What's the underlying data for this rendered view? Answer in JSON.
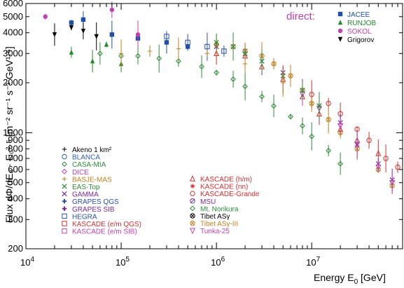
{
  "chart_data": {
    "type": "scatter",
    "title": "",
    "xlabel": "Energy E",
    "xlabel_sub": "0",
    "xlabel_unit": "[GeV]",
    "ylabel": "Flux dΦ/dE₀ · E₀²·⁵ [m⁻² sr⁻¹ s⁻¹ GeV¹·⁵]",
    "x_scale": "log",
    "y_scale": "log",
    "xlim": [
      10000,
      90000000
    ],
    "ylim": [
      200,
      6000
    ],
    "x_ticks": [
      {
        "value": 10000,
        "base": "10",
        "exp": "4"
      },
      {
        "value": 100000,
        "base": "10",
        "exp": "5"
      },
      {
        "value": 1000000,
        "base": "10",
        "exp": "6"
      },
      {
        "value": 10000000,
        "base": "10",
        "exp": "7"
      }
    ],
    "y_ticks": [
      "200",
      "300",
      "400",
      "500",
      "600",
      "700",
      "800",
      "900",
      "1000",
      "2000",
      "3000",
      "4000",
      "5000",
      "6000"
    ],
    "y_tick_values": [
      200,
      300,
      400,
      500,
      600,
      700,
      800,
      900,
      1000,
      2000,
      3000,
      4000,
      5000,
      6000
    ],
    "grid": false,
    "legend_direct": {
      "title": "direct:",
      "placement": "top-right",
      "entries": [
        {
          "name": "JACEE",
          "color": "#1f4fa8",
          "marker": "square"
        },
        {
          "name": "RUNJOB",
          "color": "#1f8a2a",
          "marker": "triangle-up"
        },
        {
          "name": "SOKOL",
          "color": "#c040b0",
          "marker": "circle"
        },
        {
          "name": "Grigorov",
          "color": "#000000",
          "marker": "triangle-down"
        }
      ]
    },
    "legend_left": {
      "placement": "bottom-left",
      "entries": [
        {
          "name": "Akeno 1 km²",
          "color": "#000000",
          "marker": "plus"
        },
        {
          "name": "BLANCA",
          "color": "#2a5fb5",
          "marker": "circle-open"
        },
        {
          "name": "CASA-MIA",
          "color": "#2e8b3a",
          "marker": "diamond-open"
        },
        {
          "name": "DICE",
          "color": "#c040b0",
          "marker": "diamond-open"
        },
        {
          "name": "BASJE-MAS",
          "color": "#c08020",
          "marker": "plus"
        },
        {
          "name": "EAS-Top",
          "color": "#2e8b3a",
          "marker": "cross"
        },
        {
          "name": "GAMMA",
          "color": "#7a2aa0",
          "marker": "cross"
        },
        {
          "name": "GRAPES QGS",
          "color": "#2a4fa8",
          "marker": "plus-bold"
        },
        {
          "name": "GRAPES SIB",
          "color": "#7a2aa0",
          "marker": "plus-bold"
        },
        {
          "name": "HEGRA",
          "color": "#2a4fa8",
          "marker": "square-open"
        },
        {
          "name": "KASCADE (e/m QGS)",
          "color": "#d03030",
          "marker": "square-open"
        },
        {
          "name": "KASCADE (e/m SIB)",
          "color": "#c040b0",
          "marker": "square-open"
        }
      ]
    },
    "legend_right": {
      "placement": "bottom-center",
      "entries": [
        {
          "name": "KASCADE (h/m)",
          "color": "#d03030",
          "marker": "triangle-open"
        },
        {
          "name": "KASCADE (nn)",
          "color": "#d03030",
          "marker": "star"
        },
        {
          "name": "KASCADE-Grande",
          "color": "#d03030",
          "marker": "circle-open"
        },
        {
          "name": "MSU",
          "color": "#7a2aa0",
          "marker": "circle-slash"
        },
        {
          "name": "Mt. Norikura",
          "color": "#2e8b3a",
          "marker": "diamond-open"
        },
        {
          "name": "Tibet ASγ",
          "color": "#000000",
          "marker": "circle-cross"
        },
        {
          "name": "Tibet ASγ-III",
          "color": "#c08020",
          "marker": "circle-cross"
        },
        {
          "name": "Tunka-25",
          "color": "#c040b0",
          "marker": "triangle-down-open"
        }
      ]
    },
    "series": [
      {
        "name": "JACEE",
        "color": "#1f4fa8",
        "marker": "square",
        "points": [
          [
            30000,
            4600
          ],
          [
            40000,
            4800
          ],
          [
            80000,
            3900
          ],
          [
            150000,
            3700
          ],
          [
            300000,
            3500
          ],
          [
            500000,
            3300
          ]
        ]
      },
      {
        "name": "RUNJOB",
        "color": "#1f8a2a",
        "marker": "triangle-up",
        "points": [
          [
            30000,
            3050
          ],
          [
            50000,
            2700
          ],
          [
            70000,
            3400
          ],
          [
            100000,
            2600
          ]
        ]
      },
      {
        "name": "SOKOL",
        "color": "#c040b0",
        "marker": "circle",
        "points": [
          [
            16000,
            5000
          ],
          [
            80000,
            5500
          ],
          [
            150000,
            3900
          ]
        ]
      },
      {
        "name": "Grigorov",
        "color": "#000000",
        "marker": "triangle-down",
        "points": [
          [
            20000,
            3900
          ],
          [
            30000,
            4300
          ],
          [
            40000,
            4100
          ],
          [
            55000,
            3800
          ]
        ]
      },
      {
        "name": "CASA-MIA",
        "color": "#2e8b3a",
        "marker": "diamond-open",
        "points": [
          [
            60000,
            3000
          ],
          [
            100000,
            2900
          ],
          [
            150000,
            2900
          ],
          [
            250000,
            2800
          ],
          [
            400000,
            2700
          ],
          [
            700000,
            2500
          ],
          [
            1000000,
            2300
          ],
          [
            1500000,
            2100
          ],
          [
            2000000,
            1900
          ],
          [
            3000000,
            1650
          ],
          [
            4000000,
            1450
          ],
          [
            6000000,
            1250
          ],
          [
            8000000,
            1100
          ],
          [
            10000000,
            950
          ],
          [
            15000000,
            780
          ],
          [
            20000000,
            650
          ]
        ]
      },
      {
        "name": "KASCADE (h/m)",
        "color": "#d03030",
        "marker": "triangle-open",
        "points": [
          [
            1000000,
            3000
          ],
          [
            2000000,
            2900
          ],
          [
            3000000,
            2500
          ],
          [
            5000000,
            2100
          ],
          [
            8000000,
            1650
          ],
          [
            12000000,
            1300
          ],
          [
            20000000,
            1050
          ],
          [
            30000000,
            900
          ],
          [
            50000000,
            750
          ]
        ]
      },
      {
        "name": "KASCADE-Grande",
        "color": "#d03030",
        "marker": "circle-open",
        "points": [
          [
            10000000,
            1700
          ],
          [
            15000000,
            1500
          ],
          [
            20000000,
            1300
          ],
          [
            30000000,
            1050
          ],
          [
            40000000,
            900
          ],
          [
            60000000,
            700
          ],
          [
            80000000,
            620
          ]
        ]
      },
      {
        "name": "GAMMA",
        "color": "#7a2aa0",
        "marker": "cross",
        "points": [
          [
            1000000,
            3300
          ],
          [
            2000000,
            3100
          ],
          [
            3000000,
            2700
          ],
          [
            5000000,
            2300
          ],
          [
            8000000,
            1800
          ],
          [
            12000000,
            1450
          ],
          [
            20000000,
            1150
          ],
          [
            30000000,
            850
          ],
          [
            50000000,
            650
          ],
          [
            70000000,
            520
          ]
        ]
      },
      {
        "name": "Tibet ASγ-III",
        "color": "#c08020",
        "marker": "circle-cross",
        "points": [
          [
            1000000,
            3400
          ],
          [
            1500000,
            3300
          ],
          [
            2000000,
            3100
          ],
          [
            3000000,
            2900
          ],
          [
            4000000,
            2600
          ],
          [
            6000000,
            2200
          ],
          [
            8000000,
            1800
          ],
          [
            10000000,
            1500
          ],
          [
            15000000,
            1200
          ],
          [
            20000000,
            1000
          ],
          [
            30000000,
            800
          ],
          [
            50000000,
            600
          ],
          [
            70000000,
            480
          ]
        ]
      },
      {
        "name": "Tunka-25",
        "color": "#c040b0",
        "marker": "triangle-down-open",
        "points": [
          [
            8000000,
            1700
          ],
          [
            12000000,
            1400
          ],
          [
            20000000,
            1100
          ],
          [
            30000000,
            850
          ],
          [
            50000000,
            620
          ],
          [
            70000000,
            500
          ]
        ]
      },
      {
        "name": "EAS-Top",
        "color": "#2e8b3a",
        "marker": "cross",
        "points": [
          [
            1000000,
            3500
          ],
          [
            1500000,
            3300
          ],
          [
            2000000,
            3000
          ],
          [
            3000000,
            2700
          ],
          [
            5000000,
            2200
          ],
          [
            8000000,
            1800
          ],
          [
            12000000,
            1450
          ]
        ]
      },
      {
        "name": "HEGRA",
        "color": "#2a4fa8",
        "marker": "square-open",
        "points": [
          [
            300000,
            3800
          ],
          [
            500000,
            3500
          ],
          [
            800000,
            3300
          ],
          [
            1200000,
            3100
          ]
        ]
      },
      {
        "name": "BASJE-MAS",
        "color": "#c08020",
        "marker": "plus",
        "points": [
          [
            100000,
            3000
          ],
          [
            200000,
            3100
          ],
          [
            400000,
            3200
          ],
          [
            800000,
            3000
          ],
          [
            2000000,
            2600
          ],
          [
            5000000,
            2000
          ]
        ]
      }
    ]
  }
}
